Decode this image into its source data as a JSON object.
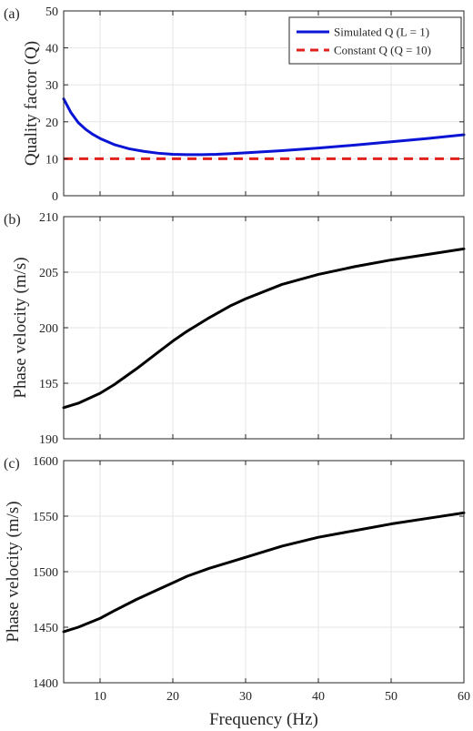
{
  "chart_data": [
    {
      "type": "line",
      "panel_label": "(a)",
      "xlabel": "",
      "ylabel": "Quality factor (Q)",
      "xlim": [
        5,
        60
      ],
      "ylim": [
        0,
        50
      ],
      "xticks": [
        10,
        20,
        30,
        40,
        50,
        60
      ],
      "yticks": [
        0,
        10,
        20,
        30,
        40,
        50
      ],
      "grid": true,
      "legend_position": "top-right",
      "series": [
        {
          "name": "Simulated Q (L = 1)",
          "color": "#0a14d4",
          "style": "solid",
          "x": [
            5,
            6,
            7,
            8,
            9,
            10,
            12,
            14,
            16,
            18,
            20,
            22,
            24,
            26,
            28,
            30,
            35,
            40,
            45,
            50,
            55,
            60
          ],
          "y": [
            26.2,
            22.5,
            19.8,
            18.0,
            16.6,
            15.5,
            13.8,
            12.7,
            12.0,
            11.5,
            11.2,
            11.1,
            11.1,
            11.2,
            11.4,
            11.6,
            12.2,
            12.9,
            13.7,
            14.6,
            15.5,
            16.5
          ]
        },
        {
          "name": "Constant Q (Q = 10)",
          "color": "#e0211d",
          "style": "dashed",
          "x": [
            5,
            60
          ],
          "y": [
            10,
            10
          ]
        }
      ]
    },
    {
      "type": "line",
      "panel_label": "(b)",
      "xlabel": "",
      "ylabel": "Phase velocity (m/s)",
      "xlim": [
        5,
        60
      ],
      "ylim": [
        190,
        210
      ],
      "xticks": [
        10,
        20,
        30,
        40,
        50,
        60
      ],
      "yticks": [
        190,
        195,
        200,
        205,
        210
      ],
      "grid": true,
      "series": [
        {
          "color": "#000000",
          "style": "solid",
          "x": [
            5,
            7,
            10,
            12,
            15,
            18,
            20,
            22,
            25,
            28,
            30,
            35,
            40,
            45,
            50,
            55,
            60
          ],
          "y": [
            192.8,
            193.2,
            194.1,
            194.9,
            196.3,
            197.8,
            198.8,
            199.7,
            200.9,
            202.0,
            202.6,
            203.9,
            204.8,
            205.5,
            206.1,
            206.6,
            207.1
          ]
        }
      ]
    },
    {
      "type": "line",
      "panel_label": "(c)",
      "xlabel": "Frequency (Hz)",
      "ylabel": "Phase velocity (m/s)",
      "xlim": [
        5,
        60
      ],
      "ylim": [
        1400,
        1600
      ],
      "xticks": [
        10,
        20,
        30,
        40,
        50,
        60
      ],
      "yticks": [
        1400,
        1450,
        1500,
        1550,
        1600
      ],
      "grid": true,
      "series": [
        {
          "color": "#000000",
          "style": "solid",
          "x": [
            5,
            7,
            10,
            12,
            15,
            18,
            20,
            22,
            25,
            28,
            30,
            35,
            40,
            45,
            50,
            55,
            60
          ],
          "y": [
            1446,
            1450,
            1458,
            1465,
            1475,
            1484,
            1490,
            1496,
            1503,
            1509,
            1513,
            1523,
            1531,
            1537,
            1543,
            1548,
            1553
          ]
        }
      ]
    }
  ]
}
